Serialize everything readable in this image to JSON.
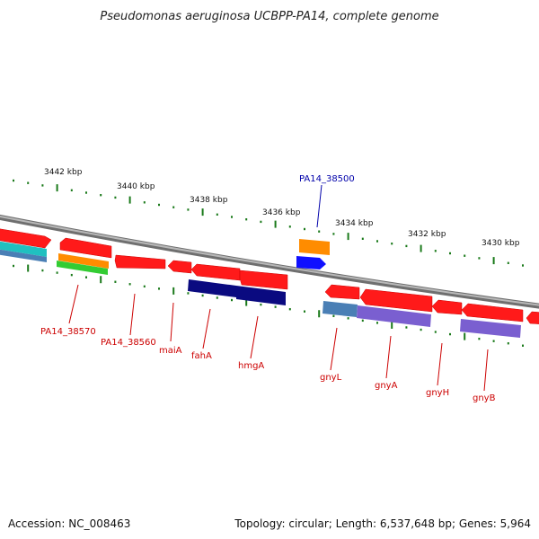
{
  "title": "Pseudomonas aeruginosa UCBPP-PA14, complete genome",
  "footer": {
    "accession": "Accession: NC_008463",
    "topology": "Topology: circular; Length: 6,537,648 bp; Genes: 5,964"
  },
  "kbp_ticks": [
    "3442 kbp",
    "3440 kbp",
    "3438 kbp",
    "3436 kbp",
    "3434 kbp",
    "3432 kbp",
    "3430 kbp"
  ],
  "gene_labels": [
    {
      "text": "PA14_38500",
      "color": "#0000aa"
    },
    {
      "text": "PA14_38570",
      "color": "#cc0000"
    },
    {
      "text": "PA14_38560",
      "color": "#cc0000"
    },
    {
      "text": "maiA",
      "color": "#cc0000"
    },
    {
      "text": "fahA",
      "color": "#cc0000"
    },
    {
      "text": "hmgA",
      "color": "#cc0000"
    },
    {
      "text": "gnyL",
      "color": "#cc0000"
    },
    {
      "text": "gnyA",
      "color": "#cc0000"
    },
    {
      "text": "gnyH",
      "color": "#cc0000"
    },
    {
      "text": "gnyB",
      "color": "#cc0000"
    }
  ],
  "colors": {
    "backbone": "#888888",
    "tick": "#1a7a1a",
    "red_gene": "#ff1a1a",
    "navy_gene": "#0a0a80",
    "blue_gene": "#1010ff",
    "orange_gene": "#ff8c00",
    "green_gene": "#33cc33",
    "teal_gene": "#20c0c0",
    "steel_gene": "#4a7fb5",
    "violet_gene": "#7a5fd0"
  }
}
